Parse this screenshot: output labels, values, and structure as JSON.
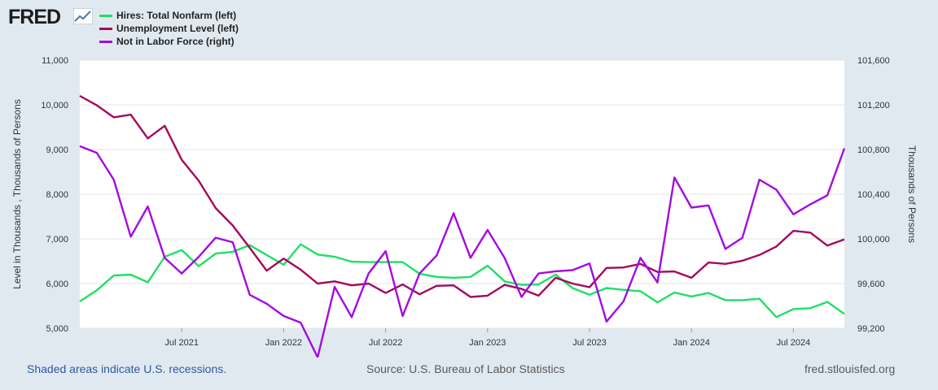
{
  "header": {
    "logo_text": "FRED"
  },
  "footer": {
    "recessions_note": "Shaded areas indicate U.S. recessions.",
    "source": "Source: U.S. Bureau of Labor Statistics",
    "site": "fred.stlouisfed.org"
  },
  "chart_data": {
    "type": "line",
    "title": "",
    "ylabel_left": "Level in Thousands , Thousands of Persons",
    "ylabel_right": "Thousands of Persons",
    "ylim_left": [
      5000,
      11000
    ],
    "ylim_right": [
      99200,
      101600
    ],
    "yticks_left": [
      "5,000",
      "6,000",
      "7,000",
      "8,000",
      "9,000",
      "10,000",
      "11,000"
    ],
    "yticks_right": [
      "99,200",
      "99,600",
      "100,000",
      "100,400",
      "100,800",
      "101,200",
      "101,600"
    ],
    "xticks": [
      "Jul 2021",
      "Jan 2022",
      "Jul 2022",
      "Jan 2023",
      "Jul 2023",
      "Jan 2024",
      "Jul 2024"
    ],
    "x": [
      "2021-01",
      "2021-02",
      "2021-03",
      "2021-04",
      "2021-05",
      "2021-06",
      "2021-07",
      "2021-08",
      "2021-09",
      "2021-10",
      "2021-11",
      "2021-12",
      "2022-01",
      "2022-02",
      "2022-03",
      "2022-04",
      "2022-05",
      "2022-06",
      "2022-07",
      "2022-08",
      "2022-09",
      "2022-10",
      "2022-11",
      "2022-12",
      "2023-01",
      "2023-02",
      "2023-03",
      "2023-04",
      "2023-05",
      "2023-06",
      "2023-07",
      "2023-08",
      "2023-09",
      "2023-10",
      "2023-11",
      "2023-12",
      "2024-01",
      "2024-02",
      "2024-03",
      "2024-04",
      "2024-05",
      "2024-06",
      "2024-07",
      "2024-08",
      "2024-09",
      "2024-10"
    ],
    "grid": true,
    "legend_position": "top-left",
    "series": [
      {
        "name": "Hires: Total Nonfarm (left)",
        "axis": "left",
        "color": "#1fe064",
        "values": [
          5600,
          5850,
          6180,
          6200,
          6030,
          6600,
          6750,
          6390,
          6670,
          6710,
          6860,
          6640,
          6420,
          6880,
          6650,
          6600,
          6490,
          6480,
          6480,
          6480,
          6220,
          6150,
          6130,
          6150,
          6400,
          6050,
          5970,
          5980,
          6200,
          5900,
          5750,
          5900,
          5860,
          5830,
          5580,
          5800,
          5710,
          5790,
          5630,
          5630,
          5660,
          5250,
          5430,
          5450,
          5590,
          5320
        ]
      },
      {
        "name": "Unemployment Level (left)",
        "axis": "left",
        "color": "#a4085e",
        "values": [
          10200,
          9990,
          9720,
          9780,
          9250,
          9530,
          8770,
          8300,
          7690,
          7300,
          6800,
          6290,
          6560,
          6310,
          6000,
          6050,
          5960,
          6000,
          5790,
          5980,
          5760,
          5950,
          5960,
          5700,
          5730,
          5970,
          5880,
          5730,
          6130,
          6000,
          5920,
          6350,
          6360,
          6440,
          6260,
          6270,
          6130,
          6470,
          6440,
          6510,
          6640,
          6830,
          7180,
          7140,
          6850,
          6990
        ]
      },
      {
        "name": "Not in Labor Force (right)",
        "axis": "right",
        "color": "#a30ae0",
        "values": [
          100830,
          100770,
          100530,
          100020,
          100290,
          99830,
          99690,
          99840,
          100010,
          99970,
          99500,
          99420,
          99310,
          99250,
          98940,
          99570,
          99300,
          99690,
          99890,
          99310,
          99690,
          99850,
          100230,
          99830,
          100080,
          99830,
          99480,
          99690,
          99710,
          99720,
          99780,
          99260,
          99440,
          99830,
          99610,
          100550,
          100280,
          100300,
          99910,
          100010,
          100530,
          100440,
          100220,
          100310,
          100390,
          100810
        ]
      }
    ]
  }
}
